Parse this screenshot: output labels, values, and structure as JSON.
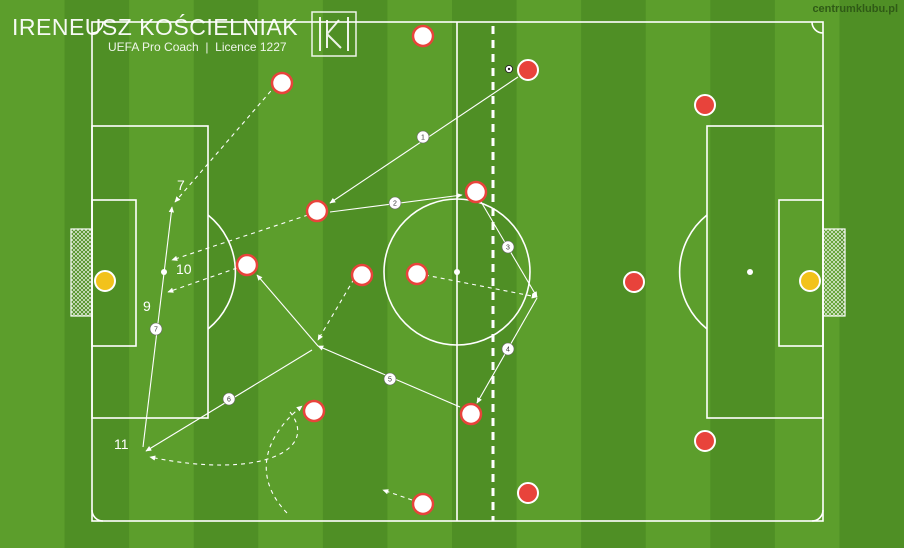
{
  "header": {
    "name": "IRENEUSZ KOŚCIELNIAK",
    "subtitle": "UEFA Pro Coach  |  Licence 1227",
    "logo_letters": "IK"
  },
  "watermark": "centrumklubu.pl",
  "colors": {
    "grass_light": "#5c9e2c",
    "grass_dark": "#4f8f25",
    "lines": "#ffffff",
    "team_red": "#e8433b",
    "team_white": "#ffffff",
    "goalkeeper": "#f2c21b"
  },
  "position_labels": [
    {
      "key": "p7",
      "text": "7"
    },
    {
      "key": "p10",
      "text": "10"
    },
    {
      "key": "p9",
      "text": "9"
    },
    {
      "key": "p11",
      "text": "11"
    }
  ],
  "pass_sequence": [
    "1",
    "2",
    "3",
    "4",
    "5",
    "6",
    "7"
  ],
  "legend_icon": "ball-icon"
}
